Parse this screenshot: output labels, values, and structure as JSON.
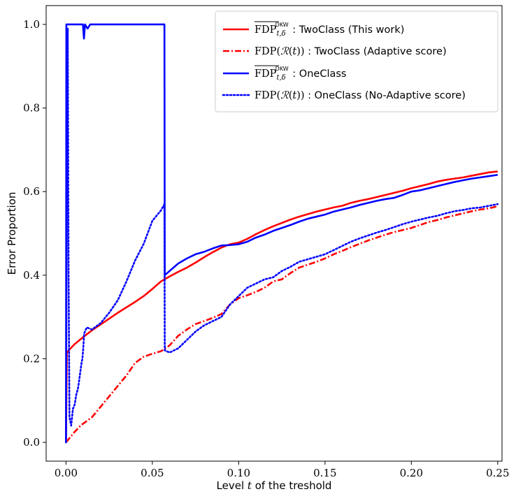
{
  "chart_data": {
    "type": "line",
    "xlabel": "Level t of the treshold",
    "ylabel": "Error Proportion",
    "xlim": [
      -0.0115,
      0.2525
    ],
    "ylim": [
      -0.045,
      1.045
    ],
    "xticks": [
      0.0,
      0.05,
      0.1,
      0.15,
      0.2,
      0.25
    ],
    "xtick_labels": [
      "0.00",
      "0.05",
      "0.10",
      "0.15",
      "0.20",
      "0.25"
    ],
    "yticks": [
      0.0,
      0.2,
      0.4,
      0.6,
      0.8,
      1.0
    ],
    "ytick_labels": [
      "0.0",
      "0.2",
      "0.4",
      "0.6",
      "0.8",
      "1.0"
    ],
    "legend_position": "top-right",
    "grid": false,
    "series": [
      {
        "name": "FDP_bar_{t,δ}^DKW : TwoClass (This work)",
        "color": "#ff0000",
        "style": "solid",
        "points": [
          [
            0.0,
            0.0
          ],
          [
            0.0005,
            0.215
          ],
          [
            0.002,
            0.222
          ],
          [
            0.005,
            0.235
          ],
          [
            0.01,
            0.252
          ],
          [
            0.015,
            0.268
          ],
          [
            0.02,
            0.282
          ],
          [
            0.025,
            0.296
          ],
          [
            0.03,
            0.31
          ],
          [
            0.035,
            0.323
          ],
          [
            0.04,
            0.336
          ],
          [
            0.045,
            0.35
          ],
          [
            0.05,
            0.367
          ],
          [
            0.055,
            0.385
          ],
          [
            0.06,
            0.397
          ],
          [
            0.065,
            0.408
          ],
          [
            0.07,
            0.418
          ],
          [
            0.075,
            0.43
          ],
          [
            0.08,
            0.443
          ],
          [
            0.085,
            0.455
          ],
          [
            0.09,
            0.466
          ],
          [
            0.095,
            0.474
          ],
          [
            0.1,
            0.478
          ],
          [
            0.105,
            0.487
          ],
          [
            0.11,
            0.498
          ],
          [
            0.115,
            0.508
          ],
          [
            0.12,
            0.517
          ],
          [
            0.125,
            0.525
          ],
          [
            0.13,
            0.533
          ],
          [
            0.135,
            0.54
          ],
          [
            0.14,
            0.546
          ],
          [
            0.145,
            0.552
          ],
          [
            0.15,
            0.557
          ],
          [
            0.155,
            0.562
          ],
          [
            0.16,
            0.566
          ],
          [
            0.165,
            0.573
          ],
          [
            0.17,
            0.578
          ],
          [
            0.175,
            0.582
          ],
          [
            0.18,
            0.587
          ],
          [
            0.185,
            0.592
          ],
          [
            0.19,
            0.597
          ],
          [
            0.195,
            0.602
          ],
          [
            0.2,
            0.608
          ],
          [
            0.205,
            0.613
          ],
          [
            0.21,
            0.618
          ],
          [
            0.215,
            0.624
          ],
          [
            0.22,
            0.628
          ],
          [
            0.225,
            0.631
          ],
          [
            0.23,
            0.634
          ],
          [
            0.235,
            0.638
          ],
          [
            0.24,
            0.642
          ],
          [
            0.245,
            0.646
          ],
          [
            0.25,
            0.648
          ]
        ]
      },
      {
        "name": "FDP(R(t)) : TwoClass (Adaptive score)",
        "color": "#ff0000",
        "style": "dashdot",
        "points": [
          [
            0.0,
            0.0
          ],
          [
            0.002,
            0.01
          ],
          [
            0.005,
            0.025
          ],
          [
            0.008,
            0.038
          ],
          [
            0.01,
            0.045
          ],
          [
            0.015,
            0.06
          ],
          [
            0.02,
            0.085
          ],
          [
            0.025,
            0.11
          ],
          [
            0.03,
            0.135
          ],
          [
            0.035,
            0.16
          ],
          [
            0.04,
            0.19
          ],
          [
            0.045,
            0.205
          ],
          [
            0.05,
            0.212
          ],
          [
            0.055,
            0.218
          ],
          [
            0.06,
            0.232
          ],
          [
            0.065,
            0.255
          ],
          [
            0.07,
            0.27
          ],
          [
            0.075,
            0.283
          ],
          [
            0.08,
            0.29
          ],
          [
            0.085,
            0.298
          ],
          [
            0.09,
            0.307
          ],
          [
            0.095,
            0.33
          ],
          [
            0.1,
            0.345
          ],
          [
            0.105,
            0.352
          ],
          [
            0.11,
            0.36
          ],
          [
            0.115,
            0.37
          ],
          [
            0.12,
            0.385
          ],
          [
            0.125,
            0.39
          ],
          [
            0.13,
            0.405
          ],
          [
            0.135,
            0.418
          ],
          [
            0.14,
            0.425
          ],
          [
            0.145,
            0.432
          ],
          [
            0.15,
            0.44
          ],
          [
            0.155,
            0.45
          ],
          [
            0.16,
            0.458
          ],
          [
            0.165,
            0.467
          ],
          [
            0.17,
            0.475
          ],
          [
            0.175,
            0.483
          ],
          [
            0.18,
            0.49
          ],
          [
            0.185,
            0.497
          ],
          [
            0.19,
            0.503
          ],
          [
            0.195,
            0.508
          ],
          [
            0.2,
            0.513
          ],
          [
            0.205,
            0.52
          ],
          [
            0.21,
            0.527
          ],
          [
            0.215,
            0.532
          ],
          [
            0.22,
            0.538
          ],
          [
            0.225,
            0.543
          ],
          [
            0.23,
            0.548
          ],
          [
            0.235,
            0.553
          ],
          [
            0.24,
            0.557
          ],
          [
            0.245,
            0.56
          ],
          [
            0.25,
            0.565
          ]
        ]
      },
      {
        "name": "FDP_bar_{t,δ}^DKW : OneClass",
        "color": "#0000ff",
        "style": "solid",
        "points": [
          [
            0.0,
            0.0
          ],
          [
            0.0002,
            1.0
          ],
          [
            0.0098,
            1.0
          ],
          [
            0.0104,
            0.966
          ],
          [
            0.011,
            1.0
          ],
          [
            0.0125,
            0.99
          ],
          [
            0.014,
            1.0
          ],
          [
            0.057,
            1.0
          ],
          [
            0.0572,
            0.4
          ],
          [
            0.06,
            0.41
          ],
          [
            0.065,
            0.428
          ],
          [
            0.07,
            0.44
          ],
          [
            0.075,
            0.45
          ],
          [
            0.08,
            0.456
          ],
          [
            0.085,
            0.464
          ],
          [
            0.09,
            0.471
          ],
          [
            0.095,
            0.472
          ],
          [
            0.1,
            0.474
          ],
          [
            0.105,
            0.48
          ],
          [
            0.11,
            0.49
          ],
          [
            0.115,
            0.497
          ],
          [
            0.12,
            0.506
          ],
          [
            0.125,
            0.513
          ],
          [
            0.13,
            0.52
          ],
          [
            0.135,
            0.528
          ],
          [
            0.14,
            0.535
          ],
          [
            0.145,
            0.54
          ],
          [
            0.15,
            0.545
          ],
          [
            0.155,
            0.552
          ],
          [
            0.16,
            0.557
          ],
          [
            0.165,
            0.562
          ],
          [
            0.17,
            0.568
          ],
          [
            0.175,
            0.573
          ],
          [
            0.18,
            0.578
          ],
          [
            0.185,
            0.582
          ],
          [
            0.19,
            0.585
          ],
          [
            0.195,
            0.592
          ],
          [
            0.2,
            0.6
          ],
          [
            0.205,
            0.603
          ],
          [
            0.21,
            0.608
          ],
          [
            0.215,
            0.613
          ],
          [
            0.22,
            0.618
          ],
          [
            0.225,
            0.623
          ],
          [
            0.23,
            0.627
          ],
          [
            0.235,
            0.631
          ],
          [
            0.24,
            0.634
          ],
          [
            0.245,
            0.637
          ],
          [
            0.25,
            0.64
          ]
        ]
      },
      {
        "name": "FDP(R(t)) : OneClass (No-Adaptive score)",
        "color": "#0000ff",
        "style": "dotted",
        "points": [
          [
            0.0,
            0.0
          ],
          [
            0.0005,
            0.6
          ],
          [
            0.001,
            0.99
          ],
          [
            0.0015,
            0.4
          ],
          [
            0.002,
            0.06
          ],
          [
            0.003,
            0.04
          ],
          [
            0.004,
            0.08
          ],
          [
            0.005,
            0.09
          ],
          [
            0.006,
            0.115
          ],
          [
            0.007,
            0.13
          ],
          [
            0.008,
            0.16
          ],
          [
            0.009,
            0.19
          ],
          [
            0.0095,
            0.2
          ],
          [
            0.01,
            0.225
          ],
          [
            0.0105,
            0.26
          ],
          [
            0.011,
            0.265
          ],
          [
            0.0115,
            0.27
          ],
          [
            0.012,
            0.275
          ],
          [
            0.015,
            0.27
          ],
          [
            0.02,
            0.285
          ],
          [
            0.025,
            0.31
          ],
          [
            0.03,
            0.34
          ],
          [
            0.035,
            0.385
          ],
          [
            0.04,
            0.435
          ],
          [
            0.045,
            0.475
          ],
          [
            0.05,
            0.53
          ],
          [
            0.055,
            0.555
          ],
          [
            0.057,
            0.57
          ],
          [
            0.0572,
            0.22
          ],
          [
            0.06,
            0.215
          ],
          [
            0.065,
            0.225
          ],
          [
            0.07,
            0.245
          ],
          [
            0.075,
            0.265
          ],
          [
            0.08,
            0.28
          ],
          [
            0.085,
            0.29
          ],
          [
            0.09,
            0.3
          ],
          [
            0.095,
            0.33
          ],
          [
            0.1,
            0.35
          ],
          [
            0.105,
            0.37
          ],
          [
            0.11,
            0.38
          ],
          [
            0.115,
            0.39
          ],
          [
            0.12,
            0.395
          ],
          [
            0.125,
            0.41
          ],
          [
            0.13,
            0.42
          ],
          [
            0.135,
            0.432
          ],
          [
            0.14,
            0.438
          ],
          [
            0.145,
            0.444
          ],
          [
            0.15,
            0.45
          ],
          [
            0.155,
            0.46
          ],
          [
            0.16,
            0.47
          ],
          [
            0.165,
            0.48
          ],
          [
            0.17,
            0.488
          ],
          [
            0.175,
            0.495
          ],
          [
            0.18,
            0.502
          ],
          [
            0.185,
            0.508
          ],
          [
            0.19,
            0.515
          ],
          [
            0.195,
            0.522
          ],
          [
            0.2,
            0.528
          ],
          [
            0.205,
            0.533
          ],
          [
            0.21,
            0.538
          ],
          [
            0.215,
            0.542
          ],
          [
            0.22,
            0.548
          ],
          [
            0.225,
            0.553
          ],
          [
            0.23,
            0.556
          ],
          [
            0.235,
            0.56
          ],
          [
            0.24,
            0.562
          ],
          [
            0.245,
            0.566
          ],
          [
            0.25,
            0.57
          ]
        ]
      }
    ],
    "legend": [
      {
        "kind": "dkw",
        "suffix": " : TwoClass (This work)",
        "series_index": 0
      },
      {
        "kind": "fdp",
        "suffix": " : TwoClass (Adaptive score)",
        "series_index": 1
      },
      {
        "kind": "dkw",
        "suffix": " : OneClass",
        "series_index": 2
      },
      {
        "kind": "fdp",
        "suffix": " : OneClass (No-Adaptive score)",
        "series_index": 3
      }
    ]
  }
}
